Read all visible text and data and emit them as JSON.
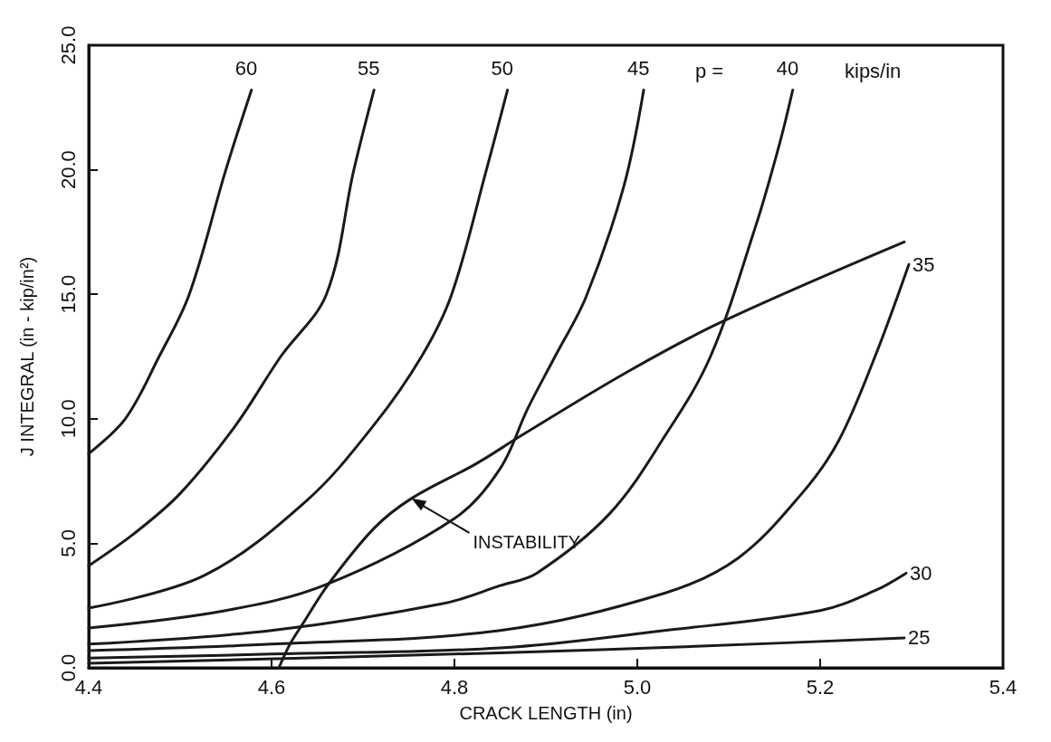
{
  "chart_data": {
    "type": "line",
    "xlabel": "CRACK LENGTH (in)",
    "ylabel": "J INTEGRAL (in - kip/in²)",
    "xlim": [
      4.4,
      5.4
    ],
    "ylim": [
      0,
      25
    ],
    "xticks": [
      4.4,
      4.6,
      4.8,
      {
        "value": 5,
        "label": "5.0"
      },
      5.2,
      5.4
    ],
    "yticks": [
      {
        "value": 0,
        "label": "0.0"
      },
      {
        "value": 5,
        "label": "5.0"
      },
      {
        "value": 10,
        "label": "10.0"
      },
      {
        "value": 15,
        "label": "15.0"
      },
      {
        "value": 20,
        "label": "20.0"
      },
      {
        "value": 25,
        "label": "25.0"
      }
    ],
    "grid": false,
    "marker": "none",
    "line_style": "solid",
    "annotations": [
      "p =",
      "kips/in",
      {
        "text": "INSTABILITY",
        "x": 4.753,
        "y": 6.8
      }
    ],
    "series": [
      {
        "name": "60",
        "color": "#1a1a1a",
        "x": [
          4.4,
          4.44,
          4.477,
          4.51,
          4.55,
          4.578
        ],
        "values": [
          8.6,
          10,
          12.5,
          15,
          20,
          23.2
        ]
      },
      {
        "name": "55",
        "color": "#1a1a1a",
        "x": [
          4.4,
          4.45,
          4.5,
          4.56,
          4.61,
          4.66,
          4.69,
          4.712
        ],
        "values": [
          4.1,
          5.4,
          7.0,
          9.7,
          12.5,
          15,
          20,
          23.2
        ]
      },
      {
        "name": "50",
        "color": "#1a1a1a",
        "x": [
          4.4,
          4.526,
          4.638,
          4.712,
          4.764,
          4.797,
          4.835,
          4.858
        ],
        "values": [
          2.4,
          3.7,
          6.7,
          9.75,
          12.5,
          15,
          20,
          23.2
        ]
      },
      {
        "name": "45",
        "color": "#1a1a1a",
        "x": [
          4.4,
          4.55,
          4.66,
          4.8,
          4.85,
          4.88,
          4.91,
          4.944,
          4.985,
          5.007
        ],
        "values": [
          1.6,
          2.3,
          3.35,
          6.0,
          8.0,
          10.4,
          12.5,
          14.9,
          19.3,
          23.2
        ]
      },
      {
        "name": "40",
        "color": "#1a1a1a",
        "x": [
          4.4,
          4.6,
          4.79,
          4.85,
          4.89,
          4.97,
          5.03,
          5.08,
          5.13,
          5.156,
          5.17
        ],
        "values": [
          0.95,
          1.5,
          2.6,
          3.3,
          3.8,
          6.2,
          9.3,
          12.5,
          17.8,
          21.1,
          23.2
        ]
      },
      {
        "name": "35",
        "color": "#1a1a1a",
        "x": [
          4.4,
          4.6,
          4.85,
          5.03,
          5.11,
          5.18,
          5.22,
          5.26,
          5.297
        ],
        "values": [
          0.69,
          0.95,
          1.5,
          3.0,
          4.4,
          7.0,
          9.1,
          12.5,
          16.2
        ]
      },
      {
        "name": "30",
        "color": "#1a1a1a",
        "x": [
          4.4,
          4.6,
          4.85,
          5.03,
          5.2,
          5.26,
          5.294
        ],
        "values": [
          0.39,
          0.55,
          0.8,
          1.5,
          2.3,
          3.1,
          3.8
        ]
      },
      {
        "name": "25",
        "color": "#1a1a1a",
        "x": [
          4.4,
          4.85,
          5.07,
          5.292
        ],
        "values": [
          0.18,
          0.6,
          0.87,
          1.2
        ]
      },
      {
        "color": "#1a1a1a",
        "x": [
          4.608,
          4.62,
          4.634,
          4.662,
          4.712,
          4.753,
          4.824,
          4.872,
          4.99,
          5.093,
          5.292
        ],
        "values": [
          0,
          0.94,
          1.76,
          3.35,
          5.6,
          6.8,
          8.2,
          9.3,
          11.9,
          13.9,
          17.1
        ]
      }
    ]
  }
}
